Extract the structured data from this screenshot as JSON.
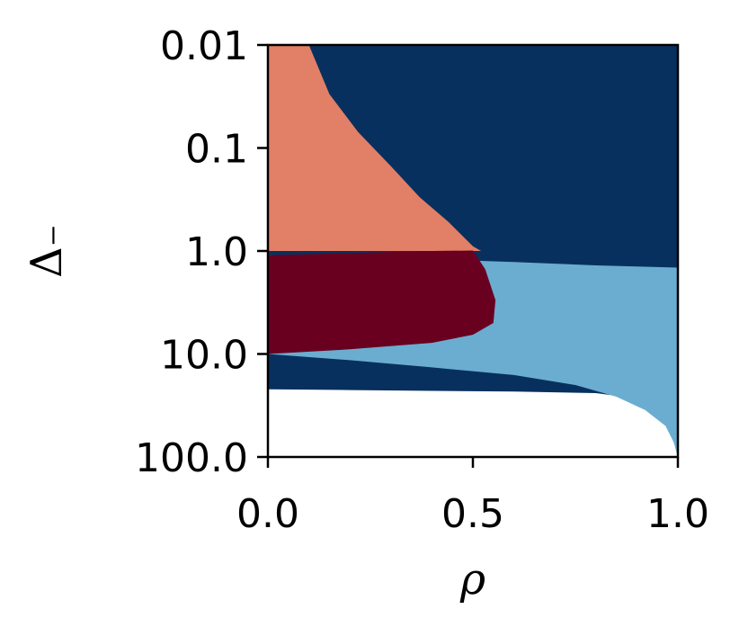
{
  "chart_data": {
    "type": "heatmap",
    "title": "",
    "xlabel": "ρ",
    "ylabel": "Δ₋",
    "xlim": [
      0.0,
      1.0
    ],
    "ylim": [
      0.01,
      100.0
    ],
    "yscale": "log",
    "y_inverted": true,
    "grid": false,
    "legend": "none",
    "xticks": [
      0.0,
      0.5,
      1.0
    ],
    "xtick_labels": [
      "0.0",
      "0.5",
      "1.0"
    ],
    "yticks": [
      0.01,
      0.1,
      1.0,
      10.0,
      100.0
    ],
    "ytick_labels": [
      "0.01",
      "0.1",
      "1.0",
      "10.0",
      "100.0"
    ],
    "colors": {
      "dark_blue": "#08305e",
      "light_blue": "#6aadd0",
      "salmon": "#e27f67",
      "dark_red": "#690020",
      "white": "#ffffff"
    },
    "regions": [
      {
        "color": "dark_blue",
        "boundary": [
          [
            0.0,
            0.01
          ],
          [
            1.0,
            0.01
          ],
          [
            1.0,
            100.0
          ],
          [
            0.99,
            60.0
          ],
          [
            0.96,
            35.0
          ],
          [
            0.9,
            27.0
          ],
          [
            0.8,
            24.0
          ],
          [
            0.6,
            23.2
          ],
          [
            0.4,
            22.8
          ],
          [
            0.2,
            22.4
          ],
          [
            0.0,
            22.0
          ]
        ]
      },
      {
        "color": "light_blue",
        "boundary": [
          [
            0.0,
            1.1
          ],
          [
            0.4,
            1.2
          ],
          [
            0.6,
            1.28
          ],
          [
            0.8,
            1.38
          ],
          [
            1.0,
            1.45
          ],
          [
            1.0,
            100.0
          ],
          [
            0.99,
            72.0
          ],
          [
            0.97,
            50.0
          ],
          [
            0.92,
            35.0
          ],
          [
            0.85,
            26.0
          ],
          [
            0.75,
            20.0
          ],
          [
            0.6,
            16.0
          ],
          [
            0.4,
            13.5
          ],
          [
            0.2,
            11.5
          ],
          [
            0.0,
            10.0
          ]
        ]
      },
      {
        "color": "salmon",
        "boundary": [
          [
            0.0,
            0.01
          ],
          [
            0.1,
            0.01
          ],
          [
            0.15,
            0.03
          ],
          [
            0.22,
            0.07
          ],
          [
            0.3,
            0.15
          ],
          [
            0.37,
            0.3
          ],
          [
            0.44,
            0.52
          ],
          [
            0.5,
            0.9
          ],
          [
            0.52,
            1.0
          ],
          [
            0.0,
            1.0
          ]
        ]
      },
      {
        "color": "dark_red",
        "boundary": [
          [
            0.0,
            1.1
          ],
          [
            0.2,
            1.05
          ],
          [
            0.4,
            1.0
          ],
          [
            0.5,
            0.99
          ],
          [
            0.53,
            1.5
          ],
          [
            0.555,
            3.0
          ],
          [
            0.55,
            5.0
          ],
          [
            0.5,
            6.5
          ],
          [
            0.4,
            7.8
          ],
          [
            0.2,
            9.0
          ],
          [
            0.0,
            10.0
          ]
        ]
      }
    ]
  }
}
